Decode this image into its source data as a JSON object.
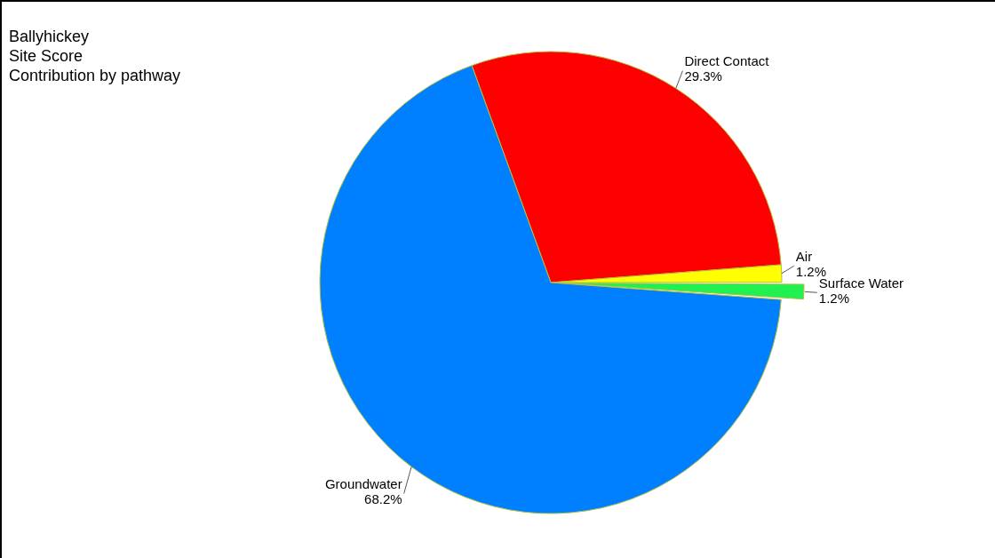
{
  "chart_data": {
    "type": "pie",
    "title": "Ballyhickey\nSite Score\nContribution by pathway",
    "categories": [
      "Direct Contact",
      "Air",
      "Surface Water",
      "Groundwater"
    ],
    "values": [
      29.3,
      1.2,
      1.2,
      68.2
    ],
    "colors": [
      "#ff0000",
      "#ffff00",
      "#20f050",
      "#0080ff"
    ],
    "value_labels": [
      "29.3%",
      "1.2%",
      "1.2%",
      "68.2%"
    ],
    "legend": false
  }
}
